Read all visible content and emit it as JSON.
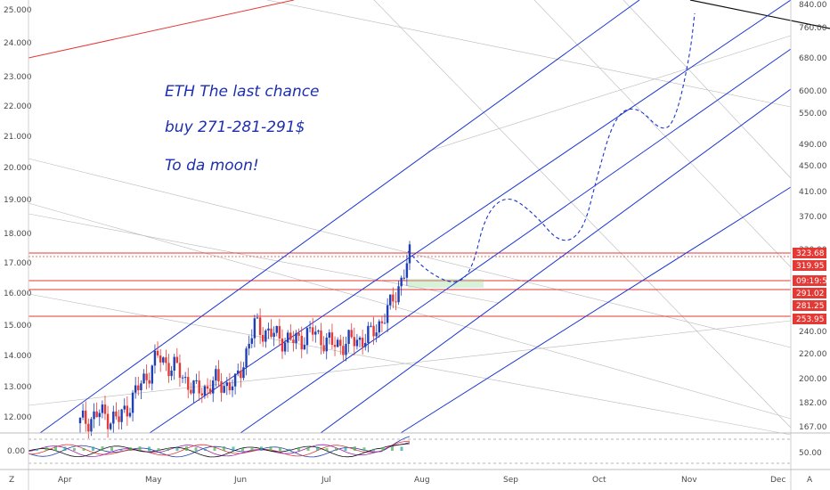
{
  "chart_data": {
    "type": "line",
    "annotations": [
      "ETH The last chance",
      "buy 271-281-291$",
      "To da moon!"
    ],
    "x_ticks": [
      "Apr",
      "May",
      "Jun",
      "Jul",
      "Aug",
      "Sep",
      "Oct",
      "Nov",
      "Dec"
    ],
    "left_axis": {
      "ticks": [
        "25.000",
        "24.000",
        "23.000",
        "22.000",
        "21.000",
        "20.000",
        "19.000",
        "18.000",
        "17.000",
        "16.000",
        "15.000",
        "14.000",
        "13.000",
        "12.000"
      ],
      "values": [
        25,
        24,
        23,
        22,
        21,
        20,
        19,
        18,
        17,
        16,
        15,
        14,
        13,
        12
      ],
      "range": [
        11.4,
        25.4
      ]
    },
    "right_axis": {
      "ticks": [
        "840.00",
        "760.00",
        "680.00",
        "600.00",
        "550.00",
        "490.00",
        "450.00",
        "410.00",
        "370.00",
        "330.00",
        "240.00",
        "220.00",
        "200.00",
        "182.00",
        "167.00"
      ],
      "scale": "log"
    },
    "price_labels": [
      {
        "text": "323.68",
        "color": "#e53935"
      },
      {
        "text": "319.95",
        "color": "#e53935"
      },
      {
        "text": "09:19:56",
        "color": "#e53935"
      },
      {
        "text": "291.02",
        "color": "#e53935"
      },
      {
        "text": "281.25",
        "color": "#e53935"
      },
      {
        "text": "253.95",
        "color": "#e53935"
      }
    ],
    "indicator": {
      "left_ticks": [
        "0.00"
      ],
      "right_ticks": [
        "50.00"
      ]
    },
    "price_series_approx": [
      {
        "x": "Apr 01",
        "y": 11.8
      },
      {
        "x": "Apr 08",
        "y": 12.1
      },
      {
        "x": "Apr 15",
        "y": 11.9
      },
      {
        "x": "Apr 22",
        "y": 12.9
      },
      {
        "x": "Apr 29",
        "y": 13.9
      },
      {
        "x": "May 06",
        "y": 13.5
      },
      {
        "x": "May 13",
        "y": 12.8
      },
      {
        "x": "May 20",
        "y": 13.1
      },
      {
        "x": "May 27",
        "y": 13.0
      },
      {
        "x": "Jun 03",
        "y": 14.9
      },
      {
        "x": "Jun 10",
        "y": 14.6
      },
      {
        "x": "Jun 17",
        "y": 14.4
      },
      {
        "x": "Jun 24",
        "y": 14.7
      },
      {
        "x": "Jul 01",
        "y": 14.3
      },
      {
        "x": "Jul 08",
        "y": 14.4
      },
      {
        "x": "Jul 15",
        "y": 14.6
      },
      {
        "x": "Jul 22",
        "y": 15.5
      },
      {
        "x": "Jul 25",
        "y": 17.1
      }
    ],
    "projection_approx": [
      {
        "x": "Jul 25",
        "y": 17.1
      },
      {
        "x": "Aug 05",
        "y": 16.3
      },
      {
        "x": "Aug 20",
        "y": 16.8
      },
      {
        "x": "Sep 01",
        "y": 18.8
      },
      {
        "x": "Sep 20",
        "y": 18.0
      },
      {
        "x": "Oct 01",
        "y": 18.5
      },
      {
        "x": "Oct 15",
        "y": 21.4
      },
      {
        "x": "Nov 01",
        "y": 21.0
      },
      {
        "x": "Nov 10",
        "y": 25.0
      }
    ],
    "colors": {
      "candle_up": "#1e3fb5",
      "candle_down": "#e53935",
      "channel": "#1a35d1",
      "levels": "#e53935",
      "projection": "#1a35d1"
    },
    "grid": false
  },
  "bottom": {
    "z_label": "Z",
    "a_label": "A"
  }
}
